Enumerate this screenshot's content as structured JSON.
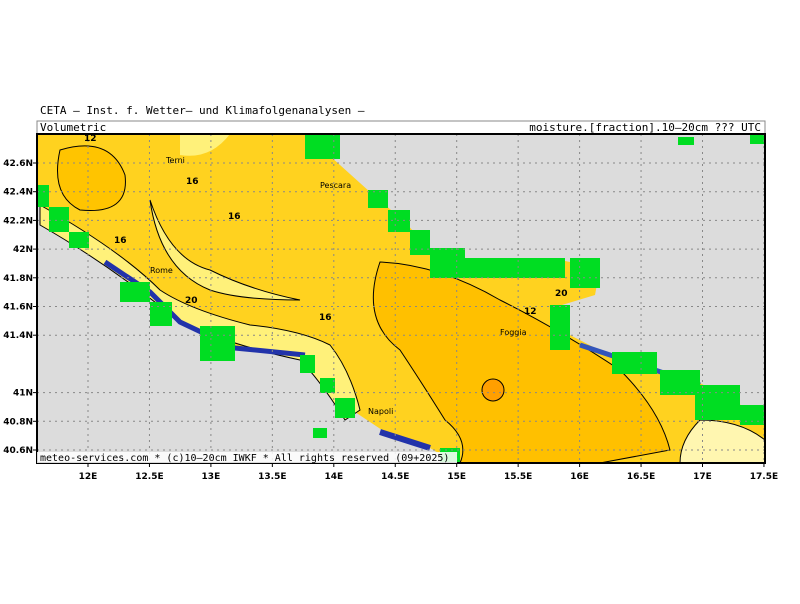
{
  "header": {
    "title": "CETA – Inst. f. Wetter– und Klimafolgenanalysen –",
    "left": "Volumetric",
    "right": "moisture.[fraction].10–20cm ??? UTC"
  },
  "footer": "meteo-services.com * (c)10–20cm IWKF * All rights reserved (09+2025)",
  "lon_ticks": [
    {
      "value": 12,
      "label": "12E"
    },
    {
      "value": 12.5,
      "label": "12.5E"
    },
    {
      "value": 13,
      "label": "13E"
    },
    {
      "value": 13.5,
      "label": "13.5E"
    },
    {
      "value": 14,
      "label": "14E"
    },
    {
      "value": 14.5,
      "label": "14.5E"
    },
    {
      "value": 15,
      "label": "15E"
    },
    {
      "value": 15.5,
      "label": "15.5E"
    },
    {
      "value": 16,
      "label": "16E"
    },
    {
      "value": 16.5,
      "label": "16.5E"
    },
    {
      "value": 17,
      "label": "17E"
    },
    {
      "value": 17.5,
      "label": "17.5E"
    }
  ],
  "lat_ticks": [
    {
      "value": 42.6,
      "label": "42.6N"
    },
    {
      "value": 42.4,
      "label": "42.4N"
    },
    {
      "value": 42.2,
      "label": "42.2N"
    },
    {
      "value": 42,
      "label": "42N"
    },
    {
      "value": 41.8,
      "label": "41.8N"
    },
    {
      "value": 41.6,
      "label": "41.6N"
    },
    {
      "value": 41.4,
      "label": "41.4N"
    },
    {
      "value": 41,
      "label": "41N"
    },
    {
      "value": 40.8,
      "label": "40.8N"
    },
    {
      "value": 40.6,
      "label": "40.6N"
    }
  ],
  "cities": [
    "Terni",
    "Pescara",
    "Rome",
    "Foggia",
    "Napoli"
  ],
  "contour_labels": [
    "12",
    "16",
    "16",
    "16",
    "20",
    "16",
    "12",
    "20"
  ]
}
